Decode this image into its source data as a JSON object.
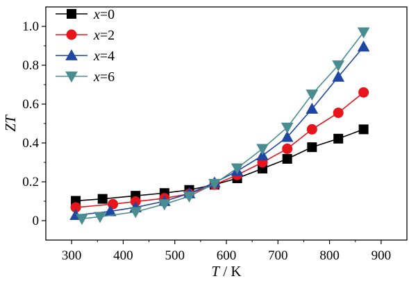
{
  "chart_data": {
    "type": "line",
    "title": "",
    "xlabel_italic": "T",
    "xlabel_rest": " / K",
    "ylabel": "ZT",
    "xlim": [
      250,
      950
    ],
    "ylim": [
      -0.1,
      1.1
    ],
    "xticks": [
      300,
      400,
      500,
      600,
      700,
      800,
      900
    ],
    "yticks": [
      0,
      0.2,
      0.4,
      0.6,
      0.8,
      1.0
    ],
    "ytick_labels": [
      "0",
      "0.2",
      "0.4",
      "0.6",
      "0.8",
      "1.0"
    ],
    "xtick_labels": [
      "300",
      "400",
      "500",
      "600",
      "700",
      "800",
      "900"
    ],
    "grid": false,
    "legend_position": "top-left",
    "series": [
      {
        "name_var": "x",
        "name_rest": "=0",
        "color": "#000000",
        "marker": "square",
        "x": [
          308,
          360,
          424,
          480,
          528,
          577,
          621,
          670,
          718,
          766,
          817,
          866
        ],
        "y": [
          0.102,
          0.112,
          0.128,
          0.142,
          0.158,
          0.185,
          0.218,
          0.268,
          0.318,
          0.378,
          0.422,
          0.47
        ]
      },
      {
        "name_var": "x",
        "name_rest": "=2",
        "color": "#e8141b",
        "marker": "circle",
        "x": [
          308,
          380,
          424,
          480,
          528,
          577,
          621,
          670,
          718,
          766,
          817,
          866
        ],
        "y": [
          0.068,
          0.085,
          0.098,
          0.115,
          0.138,
          0.185,
          0.235,
          0.3,
          0.37,
          0.47,
          0.555,
          0.66
        ]
      },
      {
        "name_var": "x",
        "name_rest": "=4",
        "color": "#1f46a3",
        "marker": "triangle-up",
        "x": [
          308,
          375,
          424,
          480,
          528,
          577,
          621,
          670,
          718,
          766,
          817,
          866
        ],
        "y": [
          0.028,
          0.048,
          0.068,
          0.1,
          0.14,
          0.195,
          0.255,
          0.335,
          0.43,
          0.575,
          0.74,
          0.895
        ]
      },
      {
        "name_var": "x",
        "name_rest": "=6",
        "color": "#4a8d91",
        "marker": "triangle-down",
        "x": [
          320,
          355,
          424,
          480,
          528,
          577,
          621,
          670,
          718,
          766,
          817,
          866
        ],
        "y": [
          0.01,
          0.02,
          0.045,
          0.085,
          0.125,
          0.19,
          0.27,
          0.37,
          0.48,
          0.65,
          0.8,
          0.97
        ]
      }
    ]
  }
}
